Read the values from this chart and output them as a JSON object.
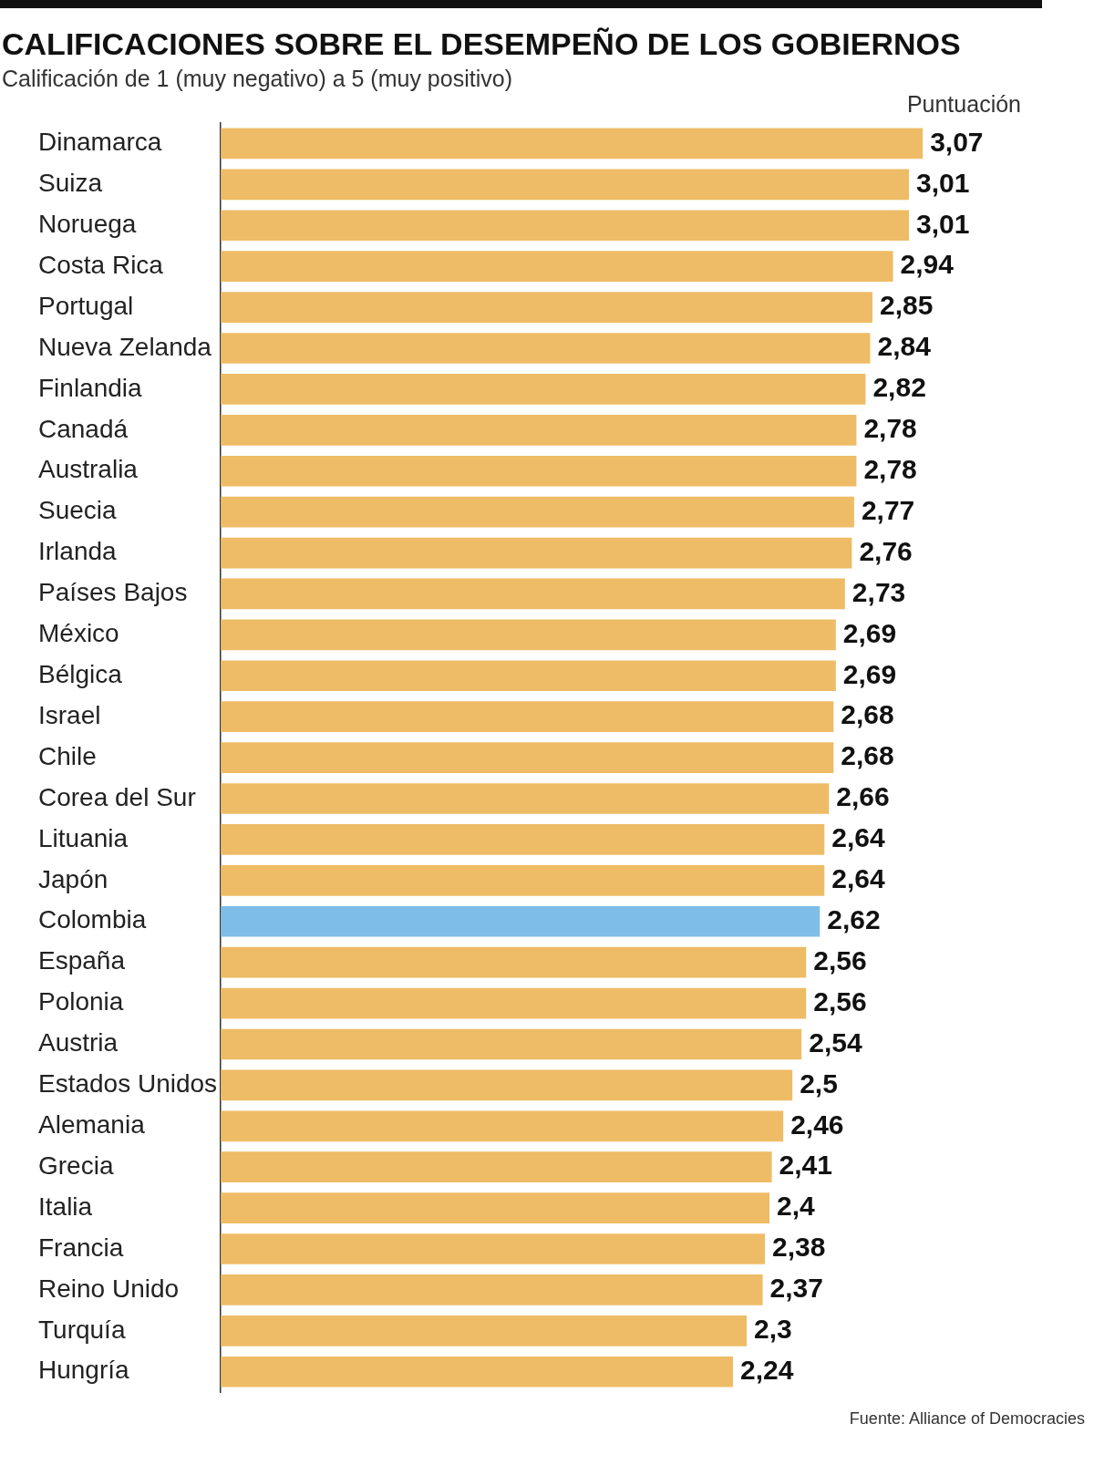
{
  "chart_data": {
    "type": "bar",
    "orientation": "horizontal",
    "title": "CALIFICACIONES SOBRE EL DESEMPEÑO DE LOS GOBIERNOS",
    "subtitle": "Calificación de 1 (muy negativo) a 5 (muy positivo)",
    "xlabel": "Puntuación",
    "categories": [
      "Dinamarca",
      "Suiza",
      "Noruega",
      "Costa Rica",
      "Portugal",
      "Nueva Zelanda",
      "Finlandia",
      "Canadá",
      "Australia",
      "Suecia",
      "Irlanda",
      "Países Bajos",
      "México",
      "Bélgica",
      "Israel",
      "Chile",
      "Corea del Sur",
      "Lituania",
      "Japón",
      "Colombia",
      "España",
      "Polonia",
      "Austria",
      "Estados Unidos",
      "Alemania",
      "Grecia",
      "Italia",
      "Francia",
      "Reino Unido",
      "Turquía",
      "Hungría"
    ],
    "values": [
      3.07,
      3.01,
      3.01,
      2.94,
      2.85,
      2.84,
      2.82,
      2.78,
      2.78,
      2.77,
      2.76,
      2.73,
      2.69,
      2.69,
      2.68,
      2.68,
      2.66,
      2.64,
      2.64,
      2.62,
      2.56,
      2.56,
      2.54,
      2.5,
      2.46,
      2.41,
      2.4,
      2.38,
      2.37,
      2.3,
      2.24
    ],
    "colors": [
      "#eebc66",
      "#eebc66",
      "#eebc66",
      "#eebc66",
      "#eebc66",
      "#eebc66",
      "#eebc66",
      "#eebc66",
      "#eebc66",
      "#eebc66",
      "#eebc66",
      "#eebc66",
      "#eebc66",
      "#eebc66",
      "#eebc66",
      "#eebc66",
      "#eebc66",
      "#eebc66",
      "#eebc66",
      "#7dbde6",
      "#eebc66",
      "#eebc66",
      "#eebc66",
      "#eebc66",
      "#eebc66",
      "#eebc66",
      "#eebc66",
      "#eebc66",
      "#eebc66",
      "#eebc66",
      "#eebc66"
    ],
    "value_labels": [
      "3,07",
      "3,01",
      "3,01",
      "2,94",
      "2,85",
      "2,84",
      "2,82",
      "2,78",
      "2,78",
      "2,77",
      "2,76",
      "2,73",
      "2,69",
      "2,69",
      "2,68",
      "2,68",
      "2,66",
      "2,64",
      "2,64",
      "2,62",
      "2,56",
      "2,56",
      "2,54",
      "2,5",
      "2,46",
      "2,41",
      "2,4",
      "2,38",
      "2,37",
      "2,3",
      "2,24"
    ],
    "tick_labels": "y",
    "legend": false,
    "grid": false,
    "annotations": [
      "Fuente: Alliance of Democracies"
    ]
  }
}
